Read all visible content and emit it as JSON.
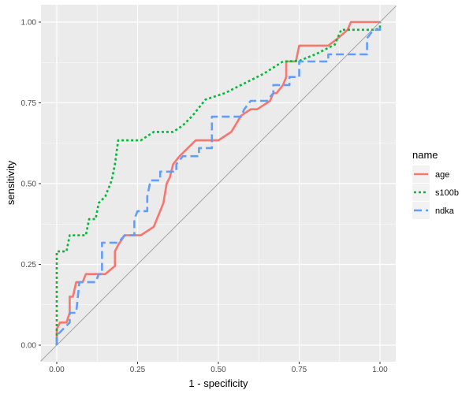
{
  "chart_data": {
    "type": "line",
    "title": "",
    "xlabel": "1 - specificity",
    "ylabel": "sensitivity",
    "xlim": [
      -0.05,
      1.05
    ],
    "ylim": [
      -0.05,
      1.05
    ],
    "x_ticks": [
      "0.00",
      "0.25",
      "0.50",
      "0.75",
      "1.00"
    ],
    "y_ticks": [
      "0.00",
      "0.25",
      "0.50",
      "0.75",
      "1.00"
    ],
    "grid": true,
    "diagonal_reference": true,
    "legend": {
      "title": "name",
      "position": "right"
    },
    "series": [
      {
        "name": "age",
        "color": "#F8766D",
        "dash": "solid",
        "points": [
          [
            0,
            0
          ],
          [
            0,
            0.05
          ],
          [
            0.01,
            0.07
          ],
          [
            0.03,
            0.07
          ],
          [
            0.04,
            0.1
          ],
          [
            0.04,
            0.15
          ],
          [
            0.05,
            0.15
          ],
          [
            0.06,
            0.195
          ],
          [
            0.08,
            0.195
          ],
          [
            0.09,
            0.22
          ],
          [
            0.15,
            0.22
          ],
          [
            0.18,
            0.245
          ],
          [
            0.18,
            0.29
          ],
          [
            0.19,
            0.31
          ],
          [
            0.21,
            0.34
          ],
          [
            0.26,
            0.34
          ],
          [
            0.3,
            0.366
          ],
          [
            0.33,
            0.44
          ],
          [
            0.34,
            0.5
          ],
          [
            0.35,
            0.52
          ],
          [
            0.36,
            0.56
          ],
          [
            0.38,
            0.585
          ],
          [
            0.43,
            0.634
          ],
          [
            0.5,
            0.634
          ],
          [
            0.54,
            0.66
          ],
          [
            0.57,
            0.71
          ],
          [
            0.6,
            0.73
          ],
          [
            0.62,
            0.73
          ],
          [
            0.66,
            0.756
          ],
          [
            0.67,
            0.78
          ],
          [
            0.68,
            0.78
          ],
          [
            0.7,
            0.805
          ],
          [
            0.71,
            0.83
          ],
          [
            0.71,
            0.878
          ],
          [
            0.74,
            0.878
          ],
          [
            0.75,
            0.927
          ],
          [
            0.84,
            0.927
          ],
          [
            0.87,
            0.95
          ],
          [
            0.9,
            0.976
          ],
          [
            0.91,
            1
          ],
          [
            1,
            1
          ]
        ]
      },
      {
        "name": "s100b",
        "color": "#00BA38",
        "dash": "dotted",
        "points": [
          [
            0,
            0
          ],
          [
            0,
            0.29
          ],
          [
            0.03,
            0.29
          ],
          [
            0.04,
            0.34
          ],
          [
            0.09,
            0.34
          ],
          [
            0.1,
            0.39
          ],
          [
            0.12,
            0.39
          ],
          [
            0.13,
            0.44
          ],
          [
            0.15,
            0.46
          ],
          [
            0.17,
            0.51
          ],
          [
            0.18,
            0.56
          ],
          [
            0.19,
            0.634
          ],
          [
            0.26,
            0.634
          ],
          [
            0.3,
            0.66
          ],
          [
            0.36,
            0.66
          ],
          [
            0.39,
            0.68
          ],
          [
            0.42,
            0.71
          ],
          [
            0.46,
            0.76
          ],
          [
            0.52,
            0.78
          ],
          [
            0.58,
            0.81
          ],
          [
            0.64,
            0.84
          ],
          [
            0.7,
            0.878
          ],
          [
            0.75,
            0.88
          ],
          [
            0.8,
            0.9
          ],
          [
            0.86,
            0.93
          ],
          [
            0.88,
            0.976
          ],
          [
            0.98,
            0.976
          ],
          [
            1,
            0.98
          ],
          [
            1,
            1
          ]
        ]
      },
      {
        "name": "ndka",
        "color": "#619CFF",
        "dash": "dashed",
        "points": [
          [
            0,
            0
          ],
          [
            0,
            0.03
          ],
          [
            0.02,
            0.05
          ],
          [
            0.04,
            0.07
          ],
          [
            0.04,
            0.1
          ],
          [
            0.06,
            0.1
          ],
          [
            0.07,
            0.195
          ],
          [
            0.12,
            0.195
          ],
          [
            0.13,
            0.22
          ],
          [
            0.14,
            0.22
          ],
          [
            0.14,
            0.317
          ],
          [
            0.19,
            0.317
          ],
          [
            0.21,
            0.34
          ],
          [
            0.24,
            0.34
          ],
          [
            0.24,
            0.39
          ],
          [
            0.25,
            0.415
          ],
          [
            0.28,
            0.415
          ],
          [
            0.28,
            0.46
          ],
          [
            0.29,
            0.51
          ],
          [
            0.32,
            0.51
          ],
          [
            0.32,
            0.537
          ],
          [
            0.37,
            0.537
          ],
          [
            0.37,
            0.56
          ],
          [
            0.39,
            0.585
          ],
          [
            0.44,
            0.585
          ],
          [
            0.44,
            0.61
          ],
          [
            0.48,
            0.61
          ],
          [
            0.48,
            0.707
          ],
          [
            0.57,
            0.707
          ],
          [
            0.58,
            0.73
          ],
          [
            0.6,
            0.756
          ],
          [
            0.65,
            0.756
          ],
          [
            0.67,
            0.78
          ],
          [
            0.67,
            0.805
          ],
          [
            0.72,
            0.805
          ],
          [
            0.72,
            0.83
          ],
          [
            0.75,
            0.83
          ],
          [
            0.75,
            0.878
          ],
          [
            0.84,
            0.878
          ],
          [
            0.84,
            0.9
          ],
          [
            0.96,
            0.9
          ],
          [
            0.96,
            0.95
          ],
          [
            0.98,
            0.976
          ],
          [
            1,
            0.976
          ],
          [
            1,
            1
          ]
        ]
      }
    ]
  }
}
